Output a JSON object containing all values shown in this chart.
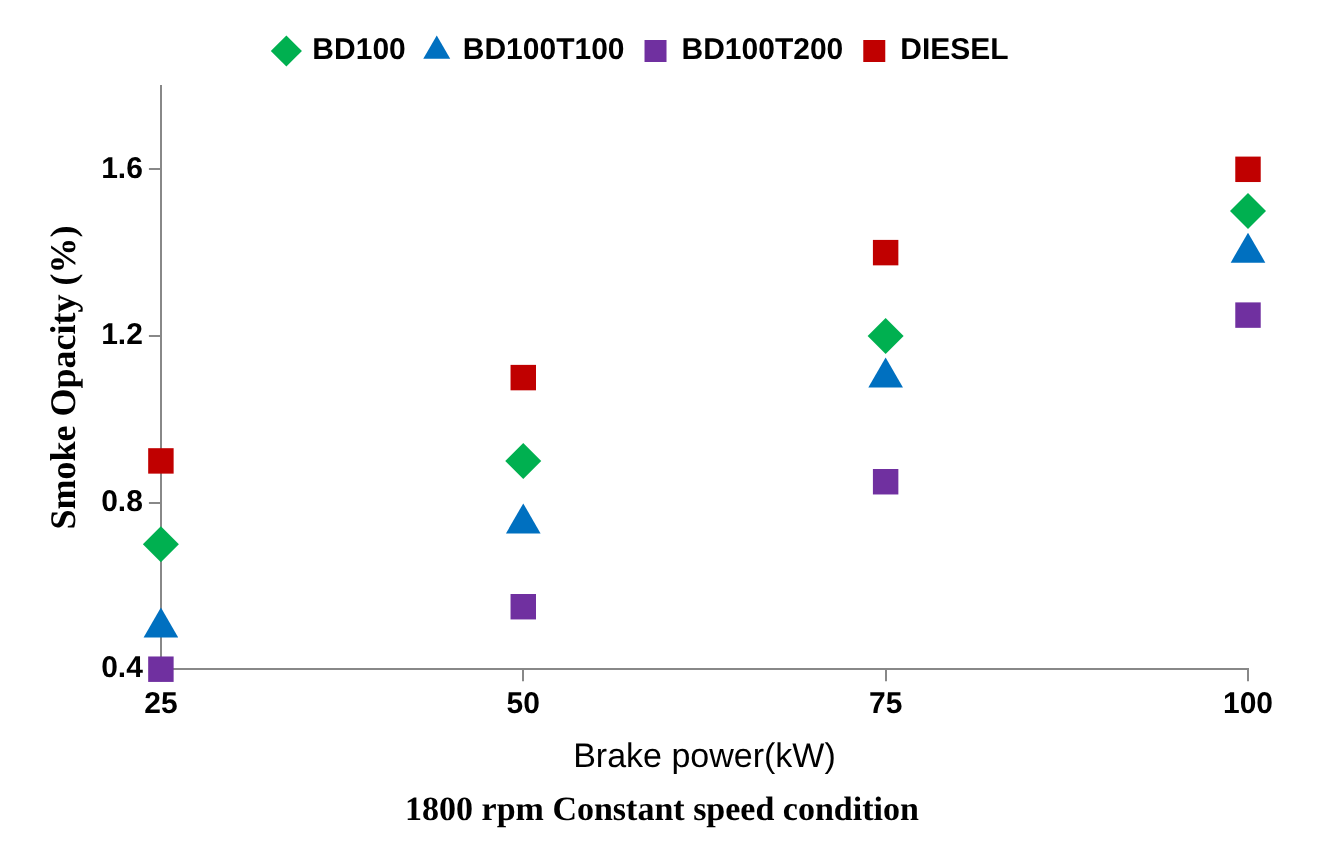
{
  "chart_data": {
    "type": "scatter",
    "xlabel": "Brake power(kW)",
    "ylabel": "Smoke Opacity (%)",
    "annotations": [
      "1800 rpm Constant speed condition"
    ],
    "x": [
      25,
      50,
      75,
      100
    ],
    "xlim": [
      25,
      100
    ],
    "xticks": [
      25,
      50,
      75,
      100
    ],
    "ylim": [
      0.4,
      1.8
    ],
    "yticks": [
      0.4,
      0.8,
      1.2,
      1.6
    ],
    "grid": false,
    "legend": "top",
    "series": [
      {
        "name": "BD100",
        "color": "#00b050",
        "marker": "diamond",
        "values": [
          0.7,
          0.9,
          1.2,
          1.5
        ]
      },
      {
        "name": "BD100T100",
        "color": "#0070c0",
        "marker": "triangle",
        "values": [
          0.5,
          0.75,
          1.1,
          1.4
        ]
      },
      {
        "name": "BD100T200",
        "color": "#7030a0",
        "marker": "square",
        "values": [
          0.4,
          0.55,
          0.85,
          1.25
        ]
      },
      {
        "name": "DIESEL",
        "color": "#c00000",
        "marker": "square",
        "values": [
          0.9,
          1.1,
          1.4,
          1.6
        ]
      }
    ]
  }
}
